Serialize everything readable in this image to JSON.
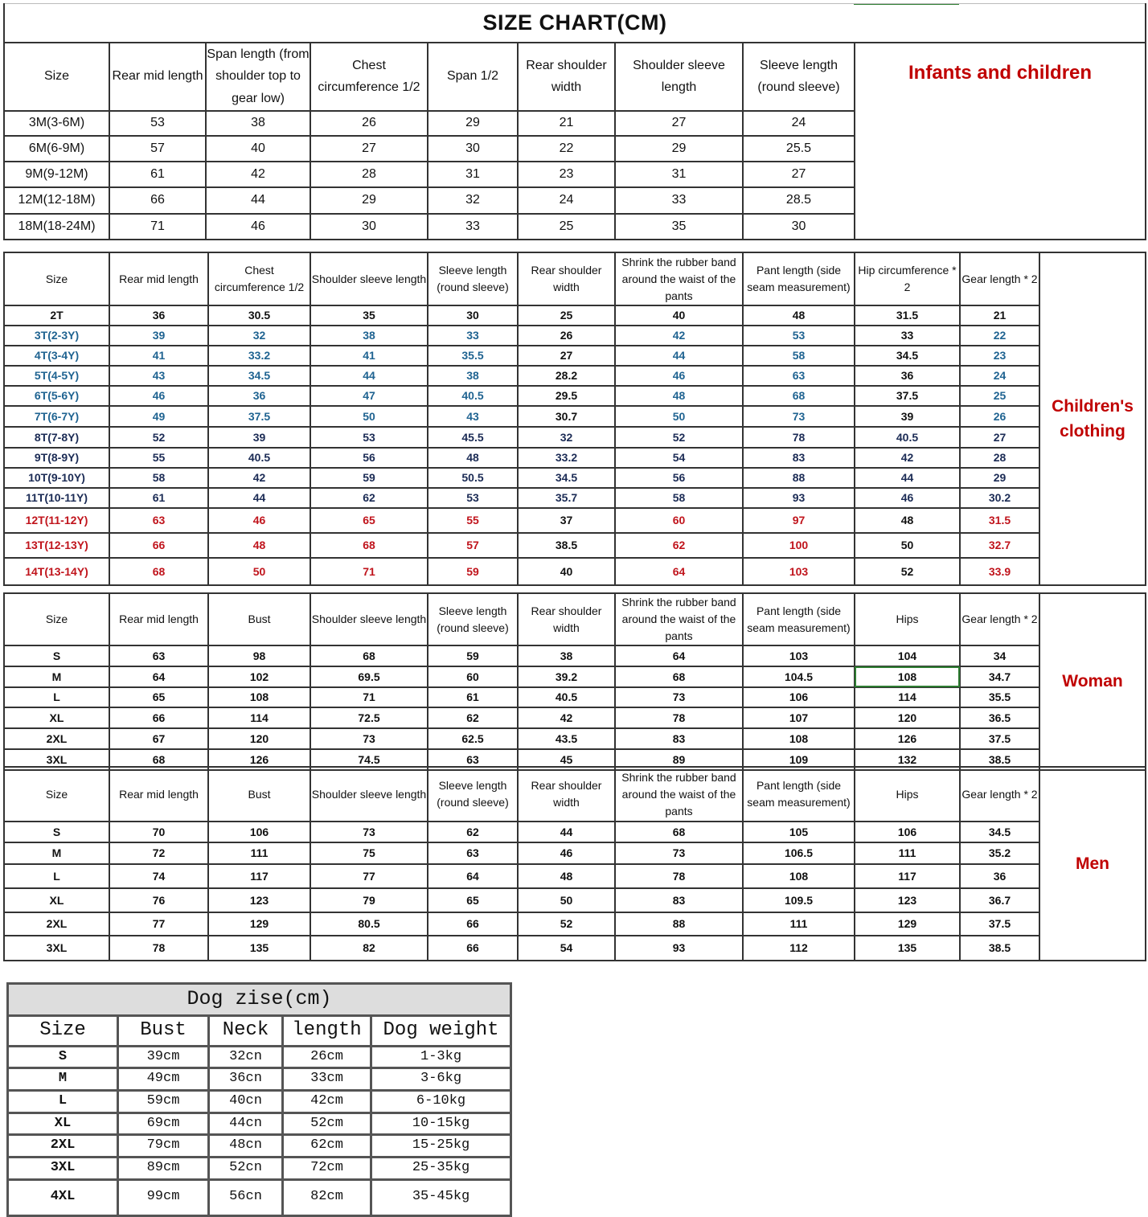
{
  "title": "SIZE CHART(CM)",
  "colors": {
    "label_red": "#c00000",
    "blue": "#1f6391",
    "navy": "#1b2b55",
    "red": "#c0141c",
    "black": "#111111",
    "selected_cell": "#2e7d32"
  },
  "infants": {
    "label": "Infants and children",
    "headers": [
      "Size",
      "Rear mid length",
      "Span length (from shoulder top to gear low)",
      "Chest circumference 1/2",
      "Span 1/2",
      "Rear shoulder width",
      "Shoulder sleeve length",
      "Sleeve length (round sleeve)"
    ],
    "rows": [
      [
        "3M(3-6M)",
        "53",
        "38",
        "26",
        "29",
        "21",
        "27",
        "24"
      ],
      [
        "6M(6-9M)",
        "57",
        "40",
        "27",
        "30",
        "22",
        "29",
        "25.5"
      ],
      [
        "9M(9-12M)",
        "61",
        "42",
        "28",
        "31",
        "23",
        "31",
        "27"
      ],
      [
        "12M(12-18M)",
        "66",
        "44",
        "29",
        "32",
        "24",
        "33",
        "28.5"
      ],
      [
        "18M(18-24M)",
        "71",
        "46",
        "30",
        "33",
        "25",
        "35",
        "30"
      ]
    ]
  },
  "children": {
    "label": "Children's clothing",
    "headers": [
      "Size",
      "Rear mid length",
      "Chest circumference 1/2",
      "Shoulder sleeve length",
      "Sleeve length (round sleeve)",
      "Rear shoulder width",
      "Shrink the rubber band around the waist of the pants",
      "Pant length (side seam measurement)",
      "Hip circumference * 2",
      "Gear length * 2"
    ],
    "rows": [
      {
        "color": "black",
        "cells": [
          "2T",
          "36",
          "30.5",
          "35",
          "30",
          "25",
          "40",
          "48",
          "31.5",
          "21"
        ]
      },
      {
        "color": "blue",
        "cells": [
          "3T(2-3Y)",
          "39",
          "32",
          "38",
          "33",
          "26",
          "42",
          "53",
          "33",
          "22"
        ]
      },
      {
        "color": "blue",
        "cells": [
          "4T(3-4Y)",
          "41",
          "33.2",
          "41",
          "35.5",
          "27",
          "44",
          "58",
          "34.5",
          "23"
        ]
      },
      {
        "color": "blue",
        "cells": [
          "5T(4-5Y)",
          "43",
          "34.5",
          "44",
          "38",
          "28.2",
          "46",
          "63",
          "36",
          "24"
        ]
      },
      {
        "color": "blue",
        "cells": [
          "6T(5-6Y)",
          "46",
          "36",
          "47",
          "40.5",
          "29.5",
          "48",
          "68",
          "37.5",
          "25"
        ]
      },
      {
        "color": "blue",
        "cells": [
          "7T(6-7Y)",
          "49",
          "37.5",
          "50",
          "43",
          "30.7",
          "50",
          "73",
          "39",
          "26"
        ]
      },
      {
        "color": "navy",
        "cells": [
          "8T(7-8Y)",
          "52",
          "39",
          "53",
          "45.5",
          "32",
          "52",
          "78",
          "40.5",
          "27"
        ]
      },
      {
        "color": "navy",
        "cells": [
          "9T(8-9Y)",
          "55",
          "40.5",
          "56",
          "48",
          "33.2",
          "54",
          "83",
          "42",
          "28"
        ]
      },
      {
        "color": "navy",
        "cells": [
          "10T(9-10Y)",
          "58",
          "42",
          "59",
          "50.5",
          "34.5",
          "56",
          "88",
          "44",
          "29"
        ]
      },
      {
        "color": "navy",
        "cells": [
          "11T(10-11Y)",
          "61",
          "44",
          "62",
          "53",
          "35.7",
          "58",
          "93",
          "46",
          "30.2"
        ]
      },
      {
        "color": "red",
        "cells": [
          "12T(11-12Y)",
          "63",
          "46",
          "65",
          "55",
          "37",
          "60",
          "97",
          "48",
          "31.5"
        ]
      },
      {
        "color": "red",
        "cells": [
          "13T(12-13Y)",
          "66",
          "48",
          "68",
          "57",
          "38.5",
          "62",
          "100",
          "50",
          "32.7"
        ]
      },
      {
        "color": "red",
        "cells": [
          "14T(13-14Y)",
          "68",
          "50",
          "71",
          "59",
          "40",
          "64",
          "103",
          "52",
          "33.9"
        ]
      }
    ]
  },
  "woman": {
    "label": "Woman",
    "headers": [
      "Size",
      "Rear mid length",
      "Bust",
      "Shoulder sleeve length",
      "Sleeve length (round sleeve)",
      "Rear shoulder width",
      "Shrink the rubber band around the waist of the pants",
      "Pant length (side seam measurement)",
      "Hips",
      "Gear length * 2"
    ],
    "rows": [
      [
        "S",
        "63",
        "98",
        "68",
        "59",
        "38",
        "64",
        "103",
        "104",
        "34"
      ],
      [
        "M",
        "64",
        "102",
        "69.5",
        "60",
        "39.2",
        "68",
        "104.5",
        "108",
        "34.7"
      ],
      [
        "L",
        "65",
        "108",
        "71",
        "61",
        "40.5",
        "73",
        "106",
        "114",
        "35.5"
      ],
      [
        "XL",
        "66",
        "114",
        "72.5",
        "62",
        "42",
        "78",
        "107",
        "120",
        "36.5"
      ],
      [
        "2XL",
        "67",
        "120",
        "73",
        "62.5",
        "43.5",
        "83",
        "108",
        "126",
        "37.5"
      ],
      [
        "3XL",
        "68",
        "126",
        "74.5",
        "63",
        "45",
        "89",
        "109",
        "132",
        "38.5"
      ]
    ]
  },
  "men": {
    "label": "Men",
    "headers": [
      "Size",
      "Rear mid length",
      "Bust",
      "Shoulder sleeve length",
      "Sleeve length (round sleeve)",
      "Rear shoulder width",
      "Shrink the rubber band around the waist of the pants",
      "Pant length (side seam measurement)",
      "Hips",
      "Gear length * 2"
    ],
    "rows": [
      [
        "S",
        "70",
        "106",
        "73",
        "62",
        "44",
        "68",
        "105",
        "106",
        "34.5"
      ],
      [
        "M",
        "72",
        "111",
        "75",
        "63",
        "46",
        "73",
        "106.5",
        "111",
        "35.2"
      ],
      [
        "L",
        "74",
        "117",
        "77",
        "64",
        "48",
        "78",
        "108",
        "117",
        "36"
      ],
      [
        "XL",
        "76",
        "123",
        "79",
        "65",
        "50",
        "83",
        "109.5",
        "123",
        "36.7"
      ],
      [
        "2XL",
        "77",
        "129",
        "80.5",
        "66",
        "52",
        "88",
        "111",
        "129",
        "37.5"
      ],
      [
        "3XL",
        "78",
        "135",
        "82",
        "66",
        "54",
        "93",
        "112",
        "135",
        "38.5"
      ]
    ]
  },
  "dog": {
    "title": "Dog zise(cm)",
    "headers": [
      "Size",
      "Bust",
      "Neck",
      "length",
      "Dog weight"
    ],
    "rows": [
      [
        "S",
        "39cm",
        "32cn",
        "26cm",
        "1-3kg"
      ],
      [
        "M",
        "49cm",
        "36cn",
        "33cm",
        "3-6kg"
      ],
      [
        "L",
        "59cm",
        "40cn",
        "42cm",
        "6-10kg"
      ],
      [
        "XL",
        "69cm",
        "44cn",
        "52cm",
        "10-15kg"
      ],
      [
        "2XL",
        "79cm",
        "48cn",
        "62cm",
        "15-25kg"
      ],
      [
        "3XL",
        "89cm",
        "52cn",
        "72cm",
        "25-35kg"
      ],
      [
        "4XL",
        "99cm",
        "56cn",
        "82cm",
        "35-45kg"
      ]
    ]
  }
}
